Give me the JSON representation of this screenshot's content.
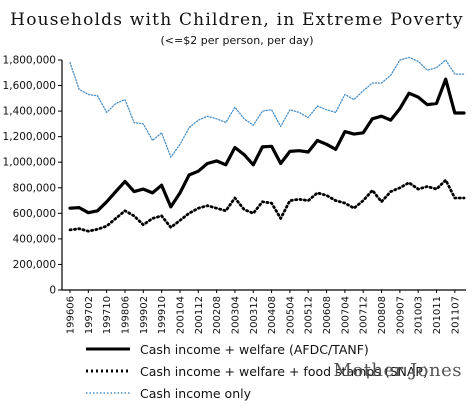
{
  "chart_data": {
    "type": "line",
    "title": "Households with Children, in Extreme Poverty",
    "subtitle": "(<=$2 per person, per day)",
    "xlabel": "",
    "ylabel": "",
    "ylim": [
      0,
      1800000
    ],
    "yticks": [
      0,
      200000,
      400000,
      600000,
      800000,
      1000000,
      1200000,
      1400000,
      1600000,
      1800000
    ],
    "ytick_labels": [
      "0",
      "200,000",
      "400,000",
      "600,000",
      "800,000",
      "1,000,000",
      "1,200,000",
      "1,400,000",
      "1,600,000",
      "1,800,000"
    ],
    "xtick_labels": [
      "199606",
      "199702",
      "199710",
      "199806",
      "199902",
      "199910",
      "200104",
      "200112",
      "200208",
      "200304",
      "200312",
      "200408",
      "200504",
      "200512",
      "200608",
      "200704",
      "200712",
      "200808",
      "200907",
      "201003",
      "201011",
      "201107"
    ],
    "x": [
      "199606",
      "199610",
      "199702",
      "199706",
      "199710",
      "199802",
      "199806",
      "199810",
      "199902",
      "199906",
      "199910",
      "200102",
      "200104",
      "200108",
      "200112",
      "200204",
      "200208",
      "200212",
      "200304",
      "200308",
      "200312",
      "200404",
      "200408",
      "200412",
      "200504",
      "200508",
      "200512",
      "200604",
      "200608",
      "200612",
      "200704",
      "200708",
      "200712",
      "200804",
      "200808",
      "200902",
      "200907",
      "200911",
      "201003",
      "201007",
      "201011",
      "201103",
      "201107",
      "201111"
    ],
    "grid": false,
    "legend_position": "bottom",
    "series": [
      {
        "name": "Cash income + welfare (AFDC/TANF)",
        "style": "solid-thick",
        "color": "#000000",
        "values": [
          640000,
          645000,
          605000,
          620000,
          690000,
          770000,
          850000,
          770000,
          790000,
          760000,
          820000,
          650000,
          760000,
          900000,
          930000,
          990000,
          1010000,
          980000,
          1115000,
          1060000,
          980000,
          1120000,
          1125000,
          990000,
          1085000,
          1090000,
          1080000,
          1170000,
          1140000,
          1100000,
          1240000,
          1220000,
          1230000,
          1340000,
          1360000,
          1330000,
          1420000,
          1540000,
          1510000,
          1450000,
          1460000,
          1650000,
          1385000,
          1385000
        ]
      },
      {
        "name": "Cash income + welfare + food stamps (SNAP)",
        "style": "dotted-thick",
        "color": "#000000",
        "values": [
          470000,
          480000,
          460000,
          475000,
          500000,
          560000,
          620000,
          580000,
          510000,
          560000,
          580000,
          490000,
          545000,
          600000,
          640000,
          660000,
          640000,
          620000,
          720000,
          630000,
          600000,
          690000,
          680000,
          560000,
          700000,
          710000,
          700000,
          760000,
          740000,
          700000,
          680000,
          640000,
          700000,
          780000,
          690000,
          770000,
          800000,
          840000,
          790000,
          810000,
          790000,
          860000,
          720000,
          720000
        ]
      },
      {
        "name": "Cash income only",
        "style": "dotted-thin",
        "color": "#4a90c8",
        "values": [
          1780000,
          1570000,
          1530000,
          1520000,
          1390000,
          1460000,
          1490000,
          1310000,
          1300000,
          1170000,
          1230000,
          1040000,
          1140000,
          1270000,
          1330000,
          1360000,
          1340000,
          1310000,
          1430000,
          1340000,
          1290000,
          1400000,
          1410000,
          1280000,
          1410000,
          1390000,
          1350000,
          1440000,
          1410000,
          1390000,
          1530000,
          1490000,
          1560000,
          1620000,
          1620000,
          1680000,
          1800000,
          1820000,
          1790000,
          1720000,
          1740000,
          1800000,
          1690000,
          1690000
        ]
      }
    ]
  },
  "brand": "Mother Jones",
  "colors": {
    "axis": "#000000",
    "cash_only": "#4a90c8",
    "text": "#111111",
    "brand": "#555555"
  }
}
